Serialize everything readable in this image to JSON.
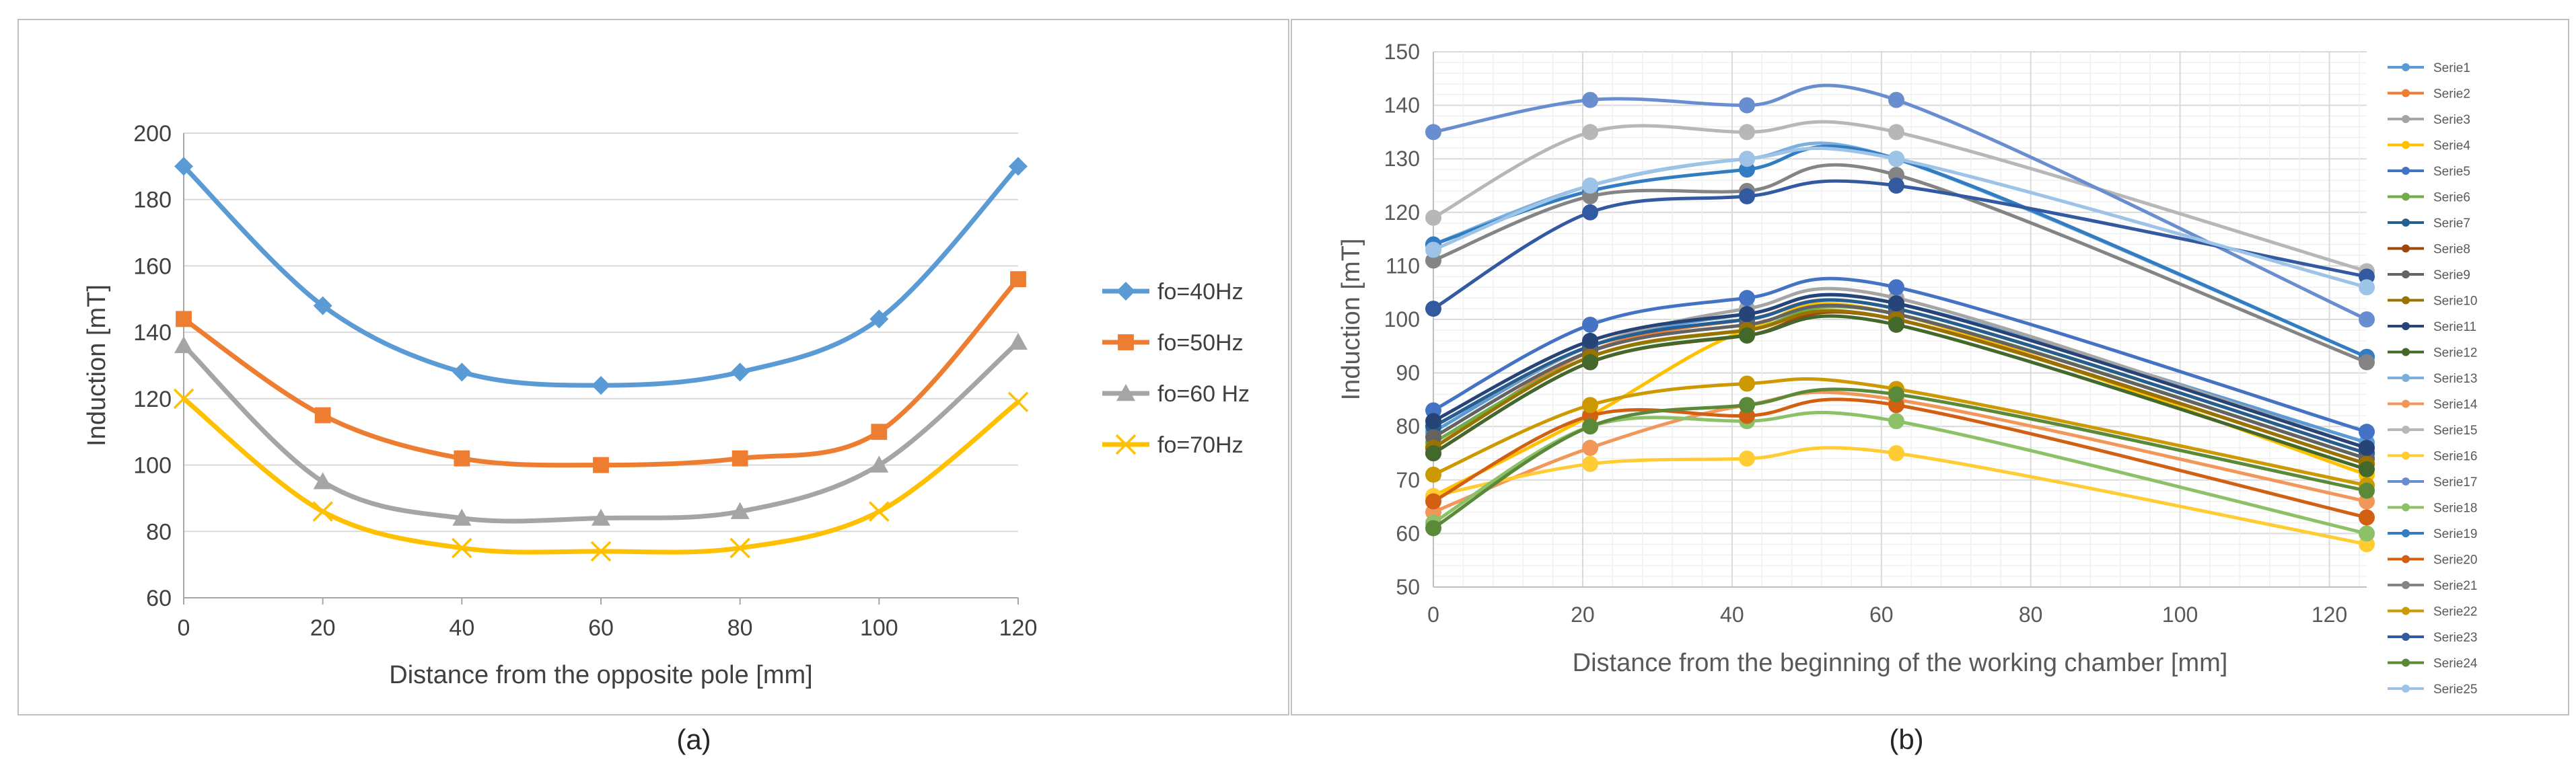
{
  "captions": {
    "a": "(a)",
    "b": "(b)"
  },
  "chart_data": [
    {
      "type": "line",
      "xlabel": "Distance from the opposite pole [mm]",
      "ylabel": "Induction [mT]",
      "x": [
        0,
        20,
        40,
        60,
        80,
        100,
        120
      ],
      "xlim": [
        0,
        120
      ],
      "ylim": [
        60,
        200
      ],
      "xticks": [
        0,
        20,
        40,
        60,
        80,
        100,
        120
      ],
      "yticks": [
        60,
        80,
        100,
        120,
        140,
        160,
        180,
        200
      ],
      "grid": "horizontal",
      "smooth": true,
      "legend_position": "right",
      "series": [
        {
          "name": "fo=40Hz",
          "values": [
            190,
            148,
            128,
            124,
            128,
            144,
            190
          ],
          "color": "#5b9bd5",
          "marker": "diamond"
        },
        {
          "name": "fo=50Hz",
          "values": [
            144,
            115,
            102,
            100,
            102,
            110,
            156
          ],
          "color": "#ed7d31",
          "marker": "square"
        },
        {
          "name": "fo=60 Hz",
          "values": [
            136,
            95,
            84,
            84,
            86,
            100,
            137
          ],
          "color": "#a5a5a5",
          "marker": "triangle"
        },
        {
          "name": "fo=70Hz",
          "values": [
            120,
            86,
            75,
            74,
            75,
            86,
            119
          ],
          "color": "#ffc000",
          "marker": "cross"
        }
      ]
    },
    {
      "type": "line",
      "xlabel": "Distance from the beginning of the working chamber [mm]",
      "ylabel": "Induction [mT]",
      "x": [
        0,
        21,
        42,
        62,
        125
      ],
      "xlim": [
        0,
        125
      ],
      "ylim": [
        50,
        150
      ],
      "xticks": [
        0,
        20,
        40,
        60,
        80,
        100,
        120
      ],
      "yticks": [
        50,
        60,
        70,
        80,
        90,
        100,
        110,
        120,
        130,
        140,
        150
      ],
      "grid": "major and minor",
      "smooth": true,
      "legend_position": "right",
      "series": [
        {
          "name": "Serie1",
          "values": [
            79,
            95,
            101,
            103,
            77
          ],
          "color": "#5b9bd5"
        },
        {
          "name": "Serie2",
          "values": [
            76,
            94,
            100,
            102,
            75
          ],
          "color": "#ed7d31"
        },
        {
          "name": "Serie3",
          "values": [
            80,
            95,
            102,
            104,
            76
          ],
          "color": "#a5a5a5"
        },
        {
          "name": "Serie4",
          "values": [
            67,
            82,
            98,
            101,
            71
          ],
          "color": "#ffc000"
        },
        {
          "name": "Serie5",
          "values": [
            83,
            99,
            104,
            106,
            79
          ],
          "color": "#4472c4"
        },
        {
          "name": "Serie6",
          "values": [
            77,
            93,
            98,
            101,
            74
          ],
          "color": "#70ad47"
        },
        {
          "name": "Serie7",
          "values": [
            80,
            95,
            100,
            102,
            75
          ],
          "color": "#255e91"
        },
        {
          "name": "Serie8",
          "values": [
            75,
            92,
            97,
            100,
            73
          ],
          "color": "#9e480e"
        },
        {
          "name": "Serie9",
          "values": [
            78,
            94,
            99,
            101,
            74
          ],
          "color": "#636363"
        },
        {
          "name": "Serie10",
          "values": [
            76,
            93,
            98,
            100,
            73
          ],
          "color": "#997300"
        },
        {
          "name": "Serie11",
          "values": [
            81,
            96,
            101,
            103,
            76
          ],
          "color": "#264478"
        },
        {
          "name": "Serie12",
          "values": [
            75,
            92,
            97,
            99,
            72
          ],
          "color": "#43682b"
        },
        {
          "name": "Serie13",
          "values": [
            114,
            125,
            130,
            130,
            93
          ],
          "color": "#7cafdd"
        },
        {
          "name": "Serie14",
          "values": [
            64,
            76,
            84,
            85,
            66
          ],
          "color": "#f1975a"
        },
        {
          "name": "Serie15",
          "values": [
            119,
            135,
            135,
            135,
            109
          ],
          "color": "#b7b7b7"
        },
        {
          "name": "Serie16",
          "values": [
            67,
            73,
            74,
            75,
            58
          ],
          "color": "#ffcd33"
        },
        {
          "name": "Serie17",
          "values": [
            135,
            141,
            140,
            141,
            100
          ],
          "color": "#698ed0"
        },
        {
          "name": "Serie18",
          "values": [
            62,
            80,
            81,
            81,
            60
          ],
          "color": "#8cc168"
        },
        {
          "name": "Serie19",
          "values": [
            114,
            124,
            128,
            130,
            93
          ],
          "color": "#327dc2"
        },
        {
          "name": "Serie20",
          "values": [
            66,
            82,
            82,
            84,
            63
          ],
          "color": "#d26012"
        },
        {
          "name": "Serie21",
          "values": [
            111,
            123,
            124,
            127,
            92
          ],
          "color": "#848484"
        },
        {
          "name": "Serie22",
          "values": [
            71,
            84,
            88,
            87,
            69
          ],
          "color": "#cc9a00"
        },
        {
          "name": "Serie23",
          "values": [
            102,
            120,
            123,
            125,
            108
          ],
          "color": "#335aa1"
        },
        {
          "name": "Serie24",
          "values": [
            61,
            80,
            84,
            86,
            68
          ],
          "color": "#5a8a39"
        },
        {
          "name": "Serie25",
          "values": [
            113,
            125,
            130,
            130,
            106
          ],
          "color": "#9dc3e6"
        }
      ]
    }
  ]
}
